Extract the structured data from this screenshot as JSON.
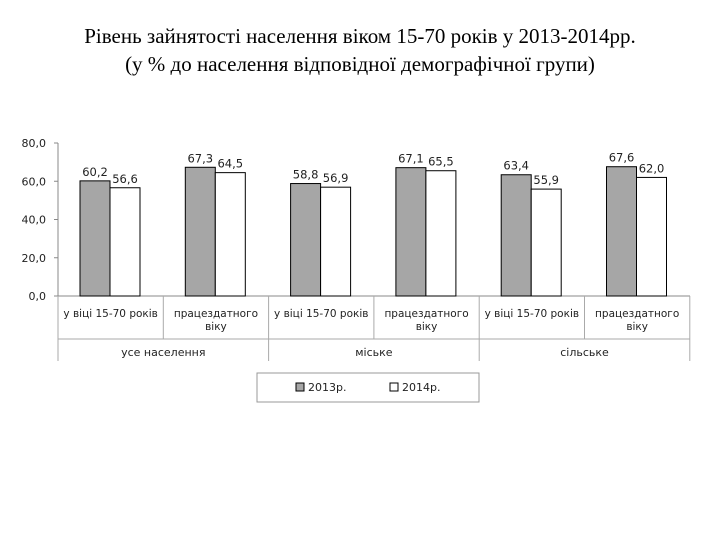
{
  "page": {
    "title_line1": "Рівень зайнятості населення віком 15-70 років у 2013-2014рр.",
    "title_line2": "(у % до населення відповідної демографічної групи)"
  },
  "chart_data": {
    "type": "bar",
    "title": "Рівень зайнятості населення віком 15-70 років у 2013-2014рр.",
    "subtitle": "(у % до населення відповідної демографічної групи)",
    "ylim": [
      0,
      80
    ],
    "yticks": [
      "0,0",
      "20,0",
      "40,0",
      "60,0",
      "80,0"
    ],
    "categories": [
      [
        "у віці 15-70 років"
      ],
      [
        "працездатного",
        "віку"
      ],
      [
        "у віці 15-70 років"
      ],
      [
        "працездатного",
        "віку"
      ],
      [
        "у віці 15-70 років"
      ],
      [
        "працездатного",
        "віку"
      ]
    ],
    "groups": [
      "усе населення",
      "міське",
      "сільське"
    ],
    "series": [
      {
        "name": "2013р.",
        "color": "#a6a6a6",
        "values": [
          60.2,
          67.3,
          58.8,
          67.1,
          63.4,
          67.6
        ],
        "labels": [
          "60,2",
          "67,3",
          "58,8",
          "67,1",
          "63,4",
          "67,6"
        ]
      },
      {
        "name": "2014р.",
        "color": "#ffffff",
        "values": [
          56.6,
          64.5,
          56.9,
          65.5,
          55.9,
          62.0
        ],
        "labels": [
          "56,6",
          "64,5",
          "56,9",
          "65,5",
          "55,9",
          "62,0"
        ]
      }
    ],
    "grid": false,
    "legend": "bottom"
  }
}
